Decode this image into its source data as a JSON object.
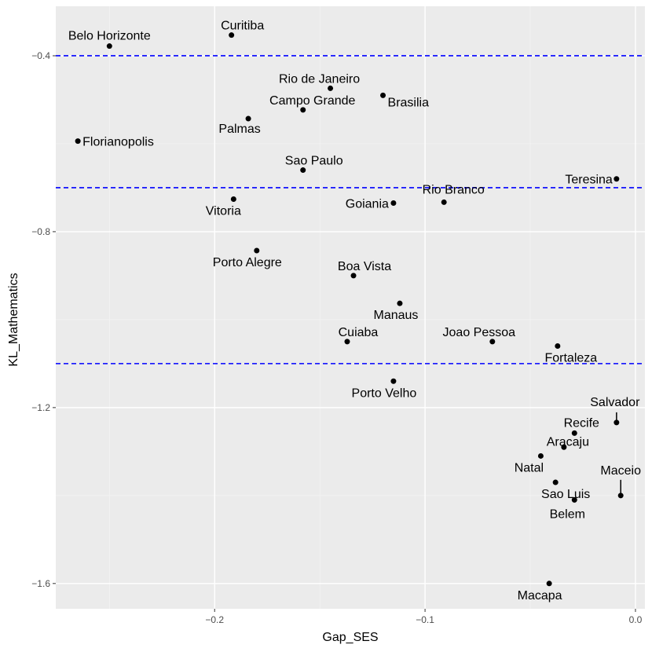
{
  "chart_data": {
    "type": "scatter",
    "title": "",
    "xlabel": "Gap_SES",
    "ylabel": "KL_Mathematics",
    "xlim": [
      -0.2755,
      0.0045
    ],
    "ylim": [
      -1.6575,
      -0.2875
    ],
    "xticks": [
      -0.2,
      -0.1,
      0.0
    ],
    "xtick_labels": [
      "−0.2",
      "−0.1",
      "0.0"
    ],
    "yticks": [
      -1.6,
      -1.2,
      -0.8,
      -0.4
    ],
    "ytick_labels": [
      "−1.6",
      "−1.2",
      "−0.8",
      "−0.4"
    ],
    "grid": true,
    "colors": {
      "panel": "#ebebeb",
      "grid_major": "#ffffff",
      "grid_minor": "#f4f4f4",
      "hline": "#0000ff",
      "point": "#000000"
    },
    "hlines": [
      -0.4,
      -0.7,
      -1.1
    ],
    "points": [
      {
        "name": "Curitiba",
        "x": -0.192,
        "y": -0.353
      },
      {
        "name": "Belo Horizonte",
        "x": -0.25,
        "y": -0.378
      },
      {
        "name": "Rio de Janeiro",
        "x": -0.145,
        "y": -0.474
      },
      {
        "name": "Brasilia",
        "x": -0.12,
        "y": -0.49
      },
      {
        "name": "Campo Grande",
        "x": -0.158,
        "y": -0.523
      },
      {
        "name": "Palmas",
        "x": -0.184,
        "y": -0.543
      },
      {
        "name": "Florianopolis",
        "x": -0.265,
        "y": -0.594
      },
      {
        "name": "Sao Paulo",
        "x": -0.158,
        "y": -0.66
      },
      {
        "name": "Teresina",
        "x": -0.009,
        "y": -0.68
      },
      {
        "name": "Vitoria",
        "x": -0.191,
        "y": -0.726
      },
      {
        "name": "Goiania",
        "x": -0.115,
        "y": -0.735
      },
      {
        "name": "Rio Branco",
        "x": -0.091,
        "y": -0.733
      },
      {
        "name": "Porto Alegre",
        "x": -0.18,
        "y": -0.843
      },
      {
        "name": "Boa Vista",
        "x": -0.134,
        "y": -0.9
      },
      {
        "name": "Manaus",
        "x": -0.112,
        "y": -0.963
      },
      {
        "name": "Cuiaba",
        "x": -0.137,
        "y": -1.05
      },
      {
        "name": "Joao Pessoa",
        "x": -0.068,
        "y": -1.05
      },
      {
        "name": "Fortaleza",
        "x": -0.037,
        "y": -1.06
      },
      {
        "name": "Porto Velho",
        "x": -0.115,
        "y": -1.14
      },
      {
        "name": "Salvador",
        "x": -0.009,
        "y": -1.234
      },
      {
        "name": "Recife",
        "x": -0.029,
        "y": -1.258
      },
      {
        "name": "Aracaju",
        "x": -0.034,
        "y": -1.29
      },
      {
        "name": "Natal",
        "x": -0.045,
        "y": -1.31
      },
      {
        "name": "Sao Luis",
        "x": -0.038,
        "y": -1.37
      },
      {
        "name": "Maceio",
        "x": -0.007,
        "y": -1.4
      },
      {
        "name": "Belem",
        "x": -0.029,
        "y": -1.41
      },
      {
        "name": "Macapa",
        "x": -0.041,
        "y": -1.6
      }
    ]
  }
}
